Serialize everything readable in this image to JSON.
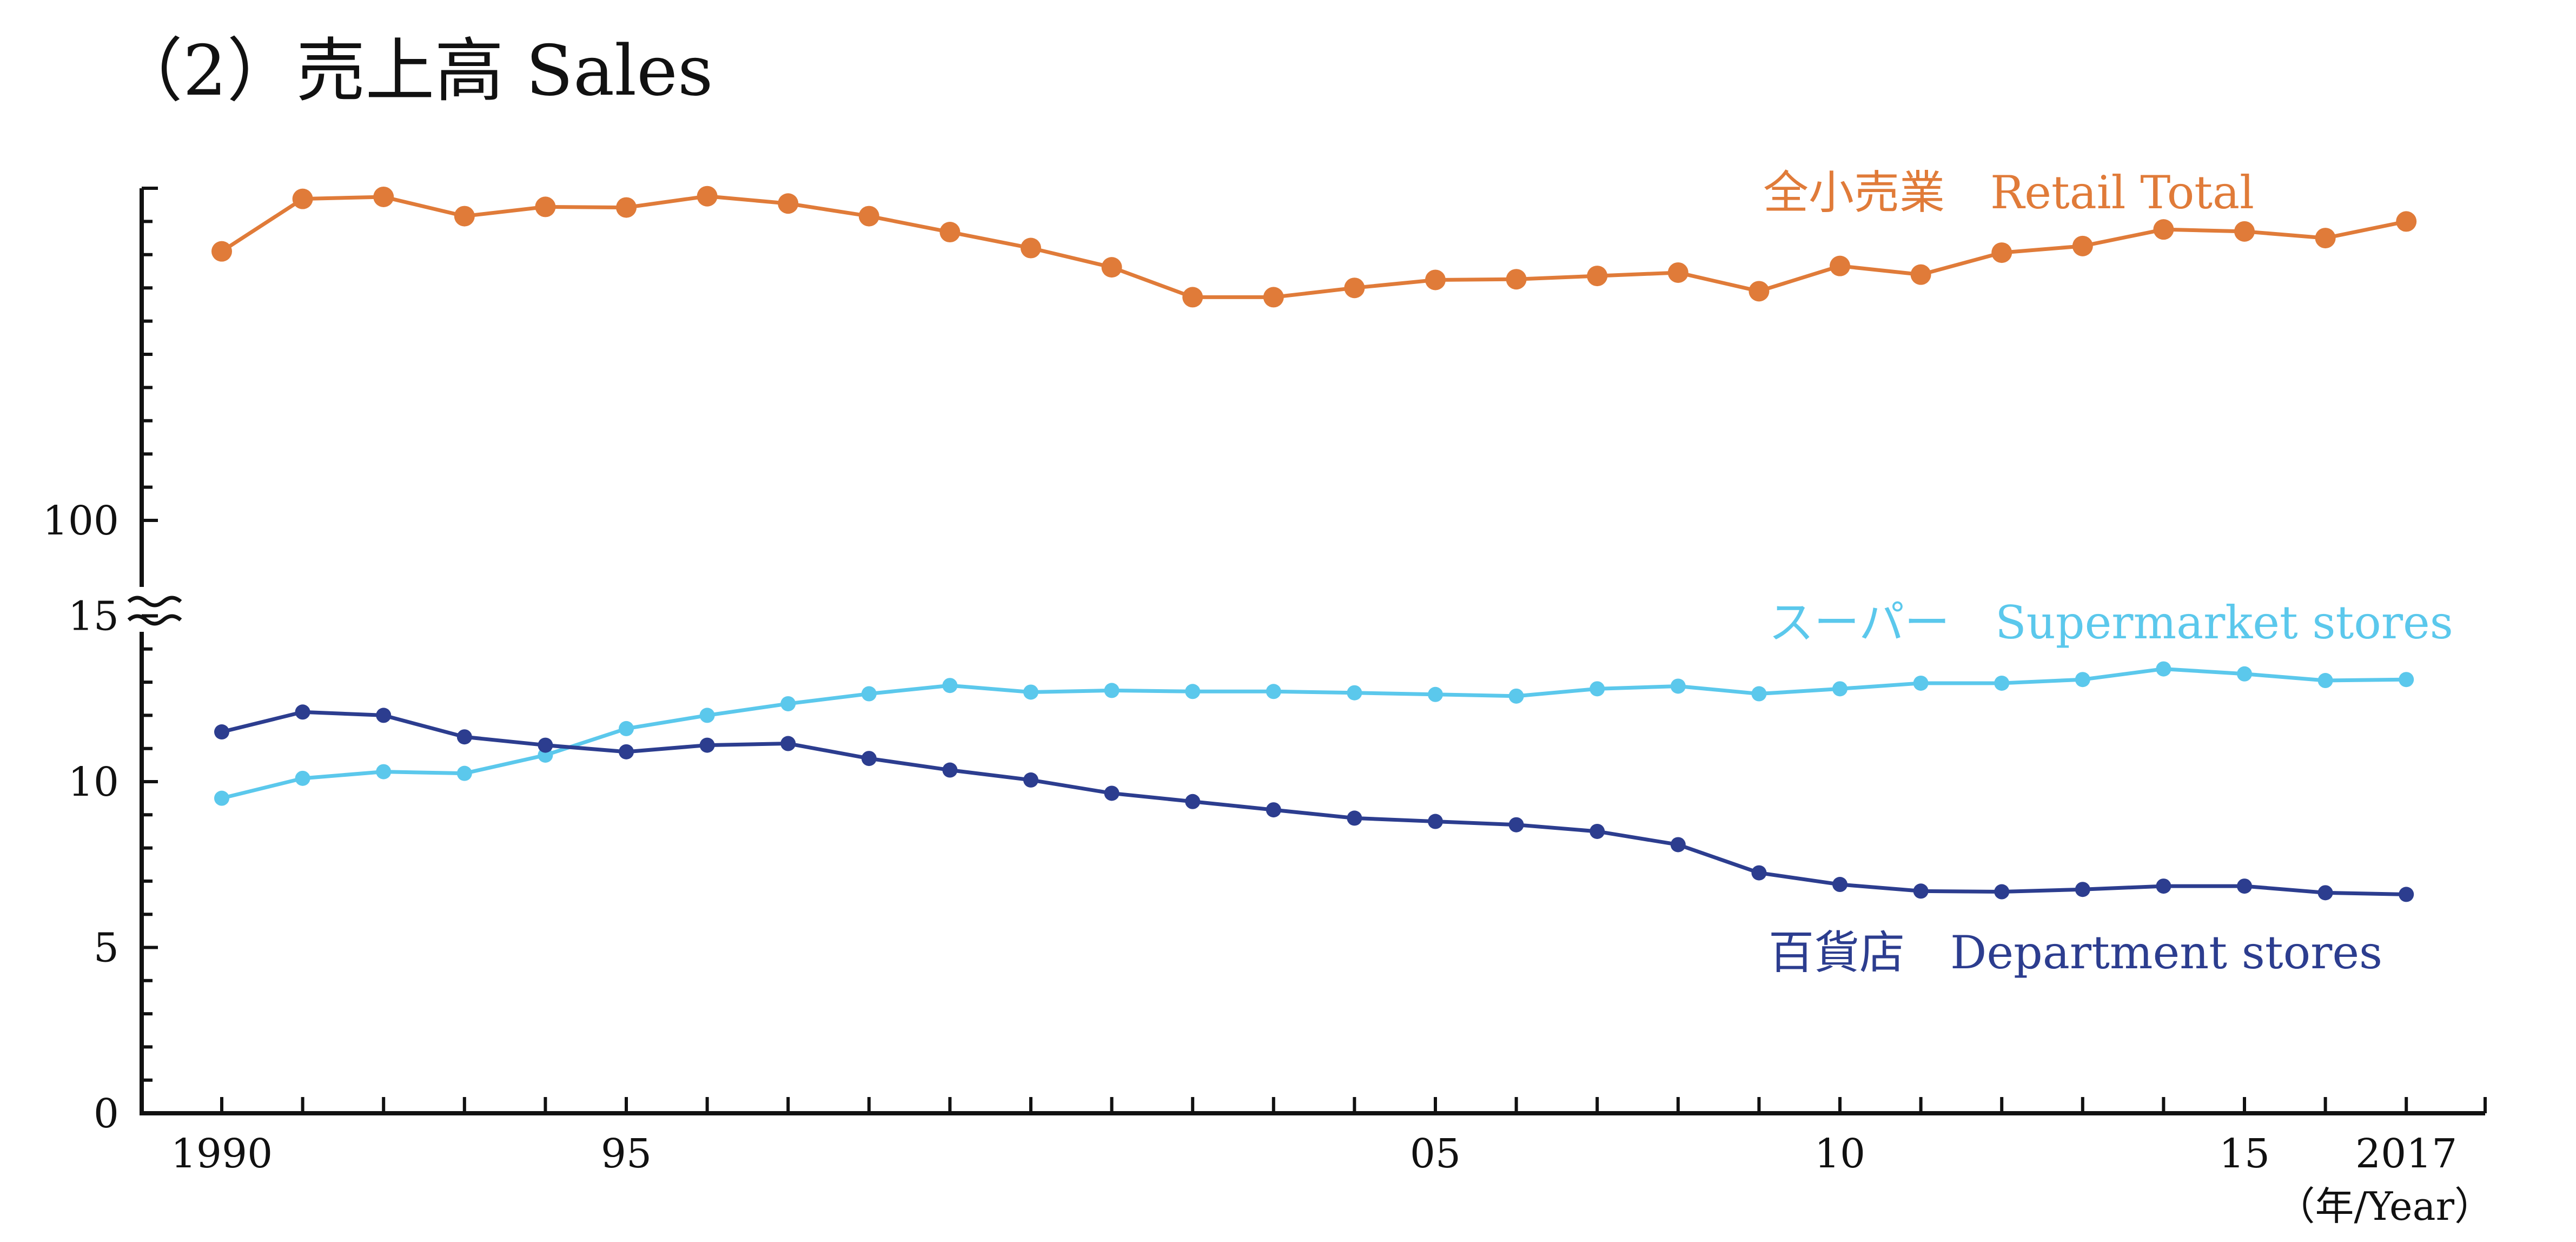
{
  "chart_data": {
    "type": "line",
    "title": "（2）売上高  Sales",
    "x_unit": "（年/Year）",
    "x": [
      1990,
      1991,
      1992,
      1993,
      1994,
      1995,
      1996,
      1997,
      1998,
      1999,
      2000,
      2001,
      2002,
      2003,
      2004,
      2005,
      2006,
      2007,
      2008,
      2009,
      2010,
      2011,
      2012,
      2013,
      2014,
      2015,
      2016,
      2017
    ],
    "x_tick_labels": [
      {
        "x": 1990,
        "label": "1990"
      },
      {
        "x": 1995,
        "label": "95"
      },
      {
        "x": 2005,
        "label": "05"
      },
      {
        "x": 2010,
        "label": "10"
      },
      {
        "x": 2015,
        "label": "15"
      },
      {
        "x": 2017,
        "label": "2017"
      }
    ],
    "y_tick_labels": [
      {
        "value": 0,
        "label": "0"
      },
      {
        "value": 5,
        "label": "5"
      },
      {
        "value": 10,
        "label": "10"
      },
      {
        "value": 15,
        "label": "15"
      },
      {
        "value": 100,
        "label": "100"
      }
    ],
    "axis_break": true,
    "lower_ylim": [
      0,
      15
    ],
    "grid": false,
    "series": [
      {
        "name": "全小売業　Retail Total",
        "segment": "upper",
        "color": "#e07b39",
        "values": [
          140.5,
          148.4,
          148.7,
          145.8,
          147.2,
          147.1,
          148.8,
          147.7,
          145.8,
          143.4,
          141.0,
          138.1,
          133.6,
          133.6,
          135.0,
          136.2,
          136.3,
          136.8,
          137.3,
          134.5,
          138.3,
          137.0,
          140.3,
          141.3,
          143.8,
          143.5,
          142.5,
          145.0
        ]
      },
      {
        "name": "スーパー　Supermarket stores",
        "segment": "lower",
        "color": "#5bc8ec",
        "values": [
          9.5,
          10.1,
          10.3,
          10.25,
          10.8,
          11.6,
          12.0,
          12.35,
          12.65,
          12.9,
          12.7,
          12.75,
          12.72,
          12.72,
          12.68,
          12.63,
          12.58,
          12.8,
          12.88,
          12.65,
          12.8,
          12.97,
          12.97,
          13.08,
          13.4,
          13.25,
          13.05,
          13.08
        ]
      },
      {
        "name": "百貨店　Department stores",
        "segment": "lower",
        "color": "#2c3d8f",
        "values": [
          11.5,
          12.1,
          12.0,
          11.35,
          11.1,
          10.9,
          11.1,
          11.15,
          10.7,
          10.35,
          10.05,
          9.65,
          9.4,
          9.15,
          8.9,
          8.8,
          8.7,
          8.5,
          8.1,
          7.25,
          6.9,
          6.7,
          6.68,
          6.75,
          6.85,
          6.85,
          6.65,
          6.6
        ]
      }
    ]
  }
}
